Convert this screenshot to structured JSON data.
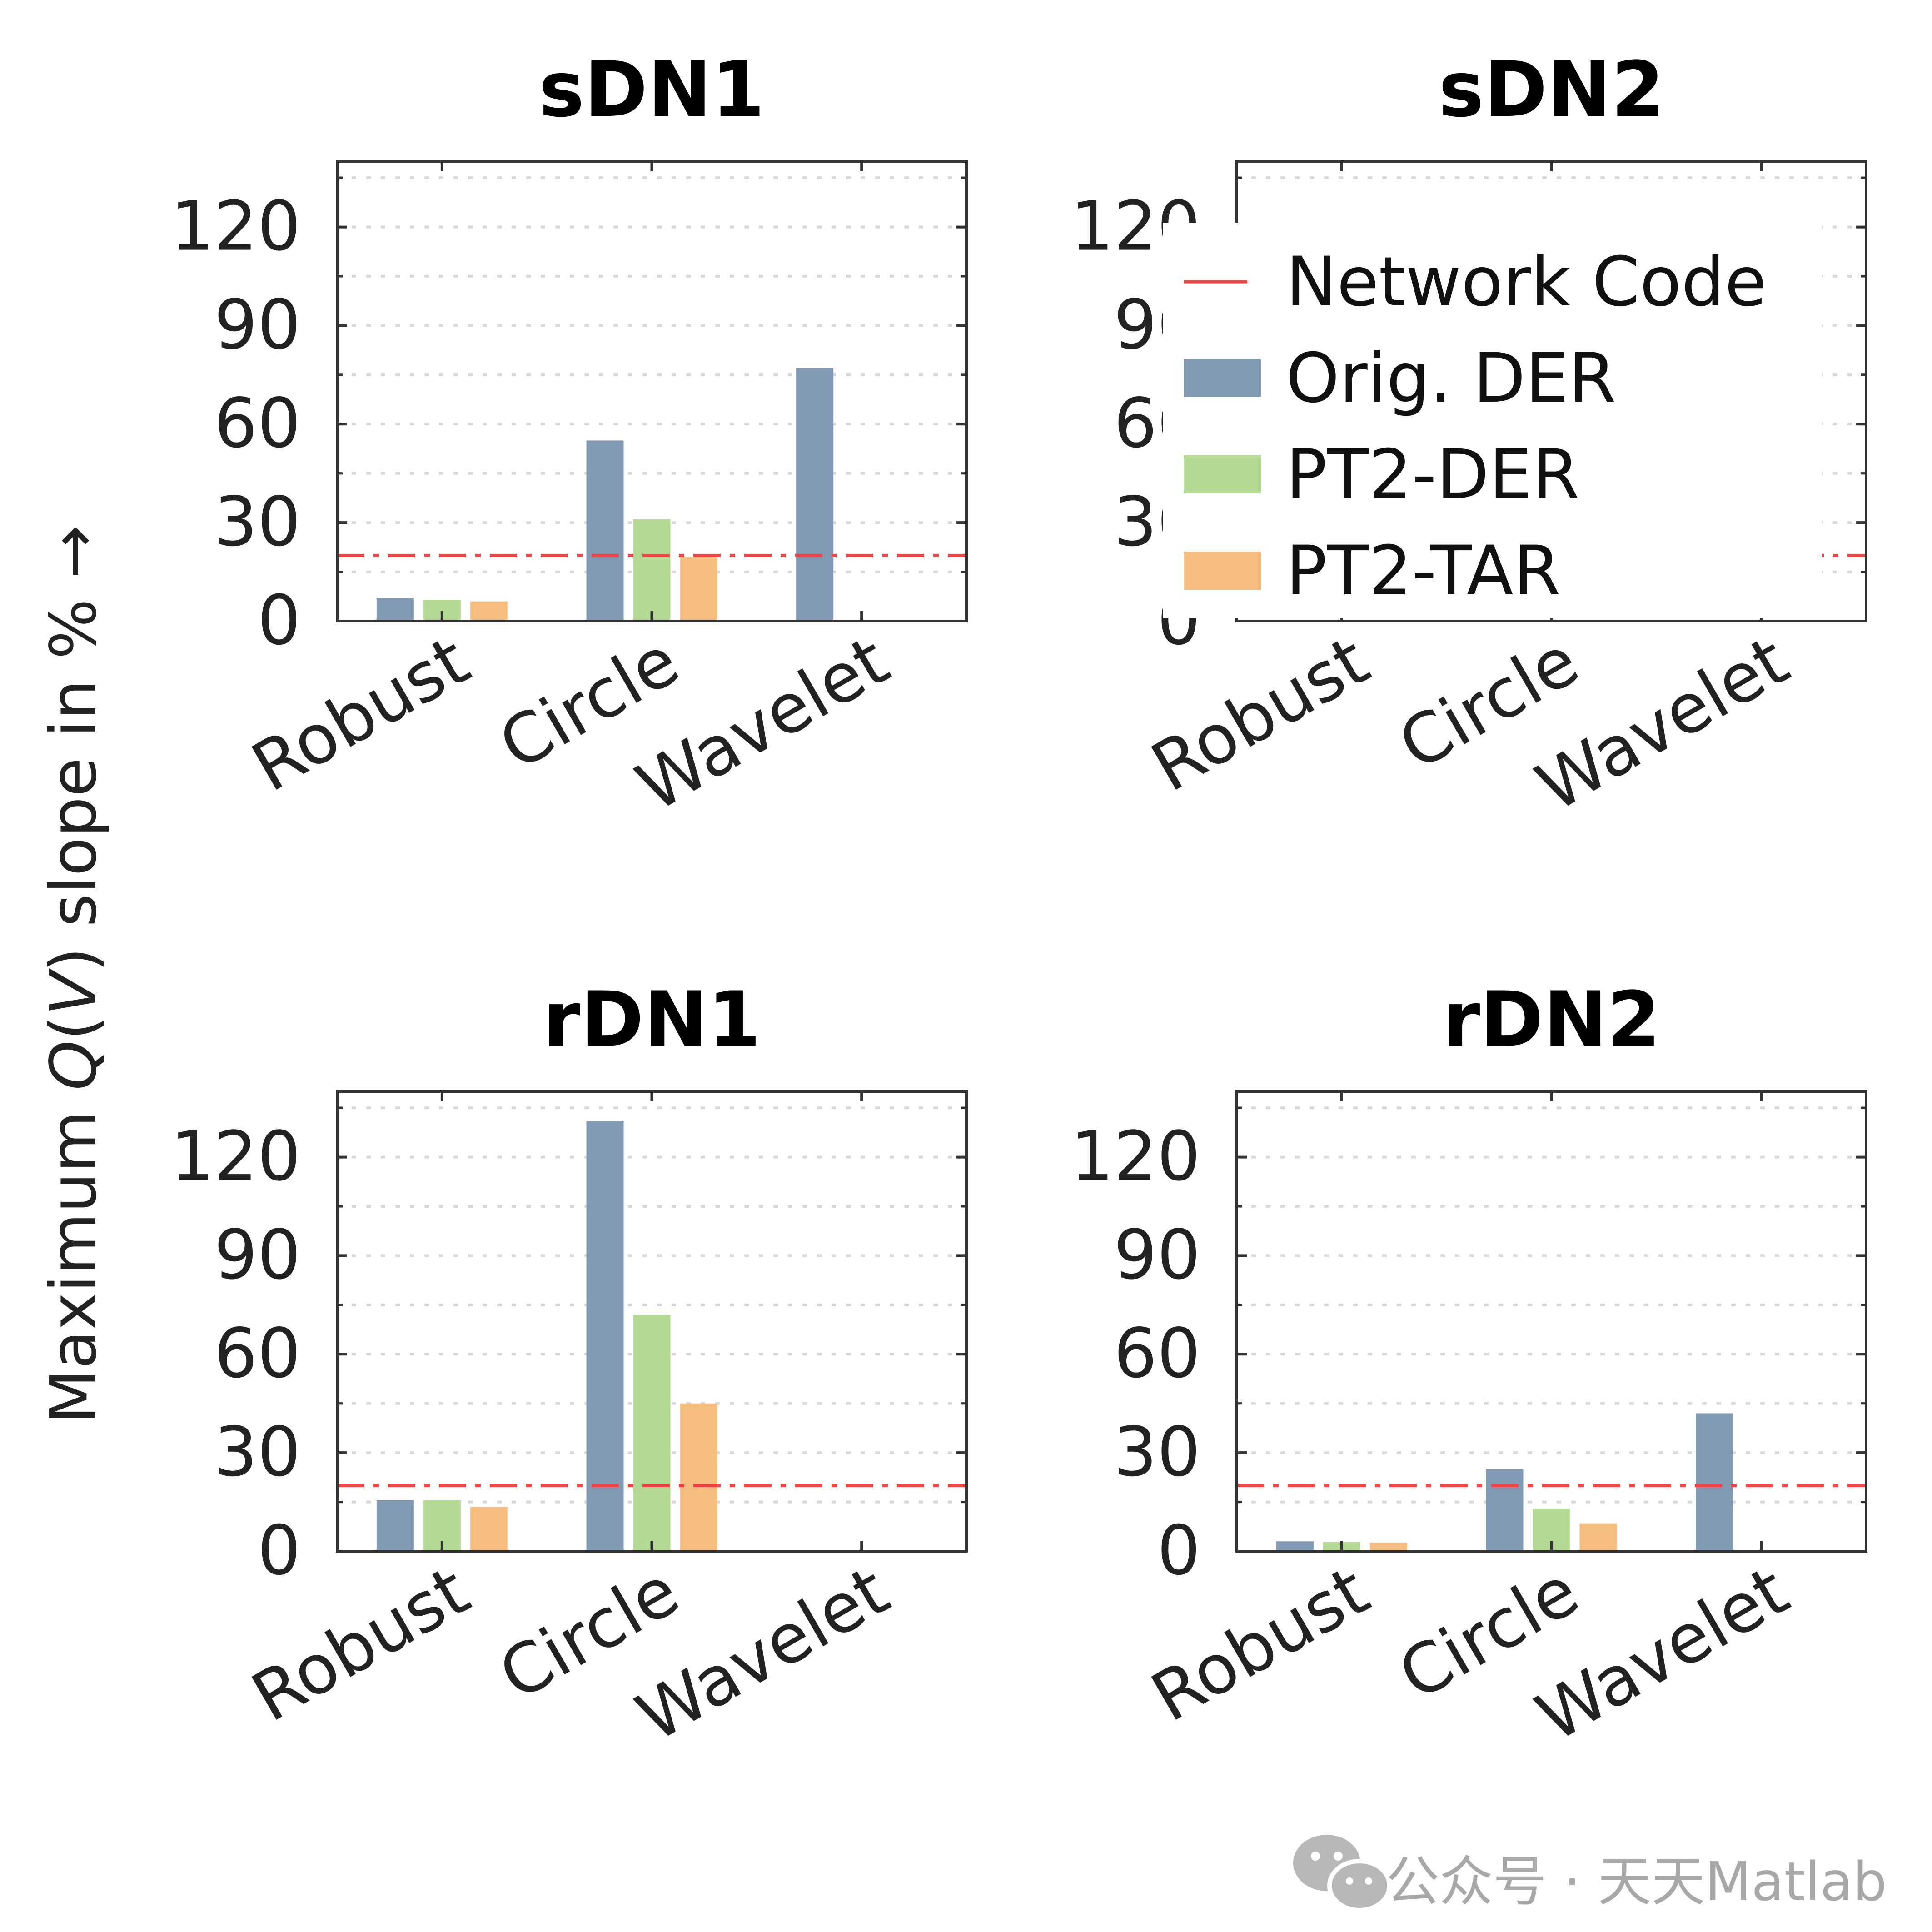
{
  "figure": {
    "ylabel": "Maximum Q(V) slope in % →",
    "ylabel_parts": {
      "pre": "Maximum ",
      "q": "Q",
      "open": "(",
      "v": "V",
      "close": ")",
      "post": " slope in % →"
    },
    "watermark": "公众号 · 天天Matlab"
  },
  "legend": {
    "items": [
      {
        "label": "Network Code",
        "kind": "line",
        "color": "#ee4444"
      },
      {
        "label": "Orig. DER",
        "kind": "bar",
        "color": "#8199b2"
      },
      {
        "label": "PT2-DER",
        "kind": "bar",
        "color": "#b3d994"
      },
      {
        "label": "PT2-TAR",
        "kind": "bar",
        "color": "#f5bd80"
      }
    ]
  },
  "chart_data": [
    {
      "type": "bar",
      "title": "sDN1",
      "categories": [
        "Robust",
        "Circle",
        "Wavelet"
      ],
      "series": [
        {
          "name": "Orig. DER",
          "values": [
            7,
            55,
            77
          ]
        },
        {
          "name": "PT2-DER",
          "values": [
            6.5,
            31,
            null
          ]
        },
        {
          "name": "PT2-TAR",
          "values": [
            6,
            19.5,
            null
          ]
        }
      ],
      "reference_line": {
        "name": "Network Code",
        "value": 20
      },
      "ylim": [
        0,
        140
      ],
      "yticks": [
        0,
        30,
        60,
        90,
        120
      ],
      "grid": true
    },
    {
      "type": "bar",
      "title": "sDN2",
      "categories": [
        "Robust",
        "Circle",
        "Wavelet"
      ],
      "series": [
        {
          "name": "Orig. DER",
          "values": [
            null,
            null,
            null
          ]
        },
        {
          "name": "PT2-DER",
          "values": [
            null,
            null,
            null
          ]
        },
        {
          "name": "PT2-TAR",
          "values": [
            null,
            null,
            null
          ]
        }
      ],
      "reference_line": {
        "name": "Network Code",
        "value": 20
      },
      "ylim": [
        0,
        140
      ],
      "yticks": [
        0,
        30,
        60,
        90,
        120
      ],
      "grid": true,
      "legend": "top-right"
    },
    {
      "type": "bar",
      "title": "rDN1",
      "categories": [
        "Robust",
        "Circle",
        "Wavelet"
      ],
      "series": [
        {
          "name": "Orig. DER",
          "values": [
            15.5,
            131,
            null
          ]
        },
        {
          "name": "PT2-DER",
          "values": [
            15.5,
            72,
            null
          ]
        },
        {
          "name": "PT2-TAR",
          "values": [
            13.5,
            45,
            null
          ]
        }
      ],
      "reference_line": {
        "name": "Network Code",
        "value": 20
      },
      "ylim": [
        0,
        140
      ],
      "yticks": [
        0,
        30,
        60,
        90,
        120
      ],
      "grid": true
    },
    {
      "type": "bar",
      "title": "rDN2",
      "categories": [
        "Robust",
        "Circle",
        "Wavelet"
      ],
      "series": [
        {
          "name": "Orig. DER",
          "values": [
            3,
            25,
            42
          ]
        },
        {
          "name": "PT2-DER",
          "values": [
            2.8,
            13,
            null
          ]
        },
        {
          "name": "PT2-TAR",
          "values": [
            2.6,
            8.5,
            null
          ]
        }
      ],
      "reference_line": {
        "name": "Network Code",
        "value": 20
      },
      "ylim": [
        0,
        140
      ],
      "yticks": [
        0,
        30,
        60,
        90,
        120
      ],
      "grid": true
    }
  ]
}
